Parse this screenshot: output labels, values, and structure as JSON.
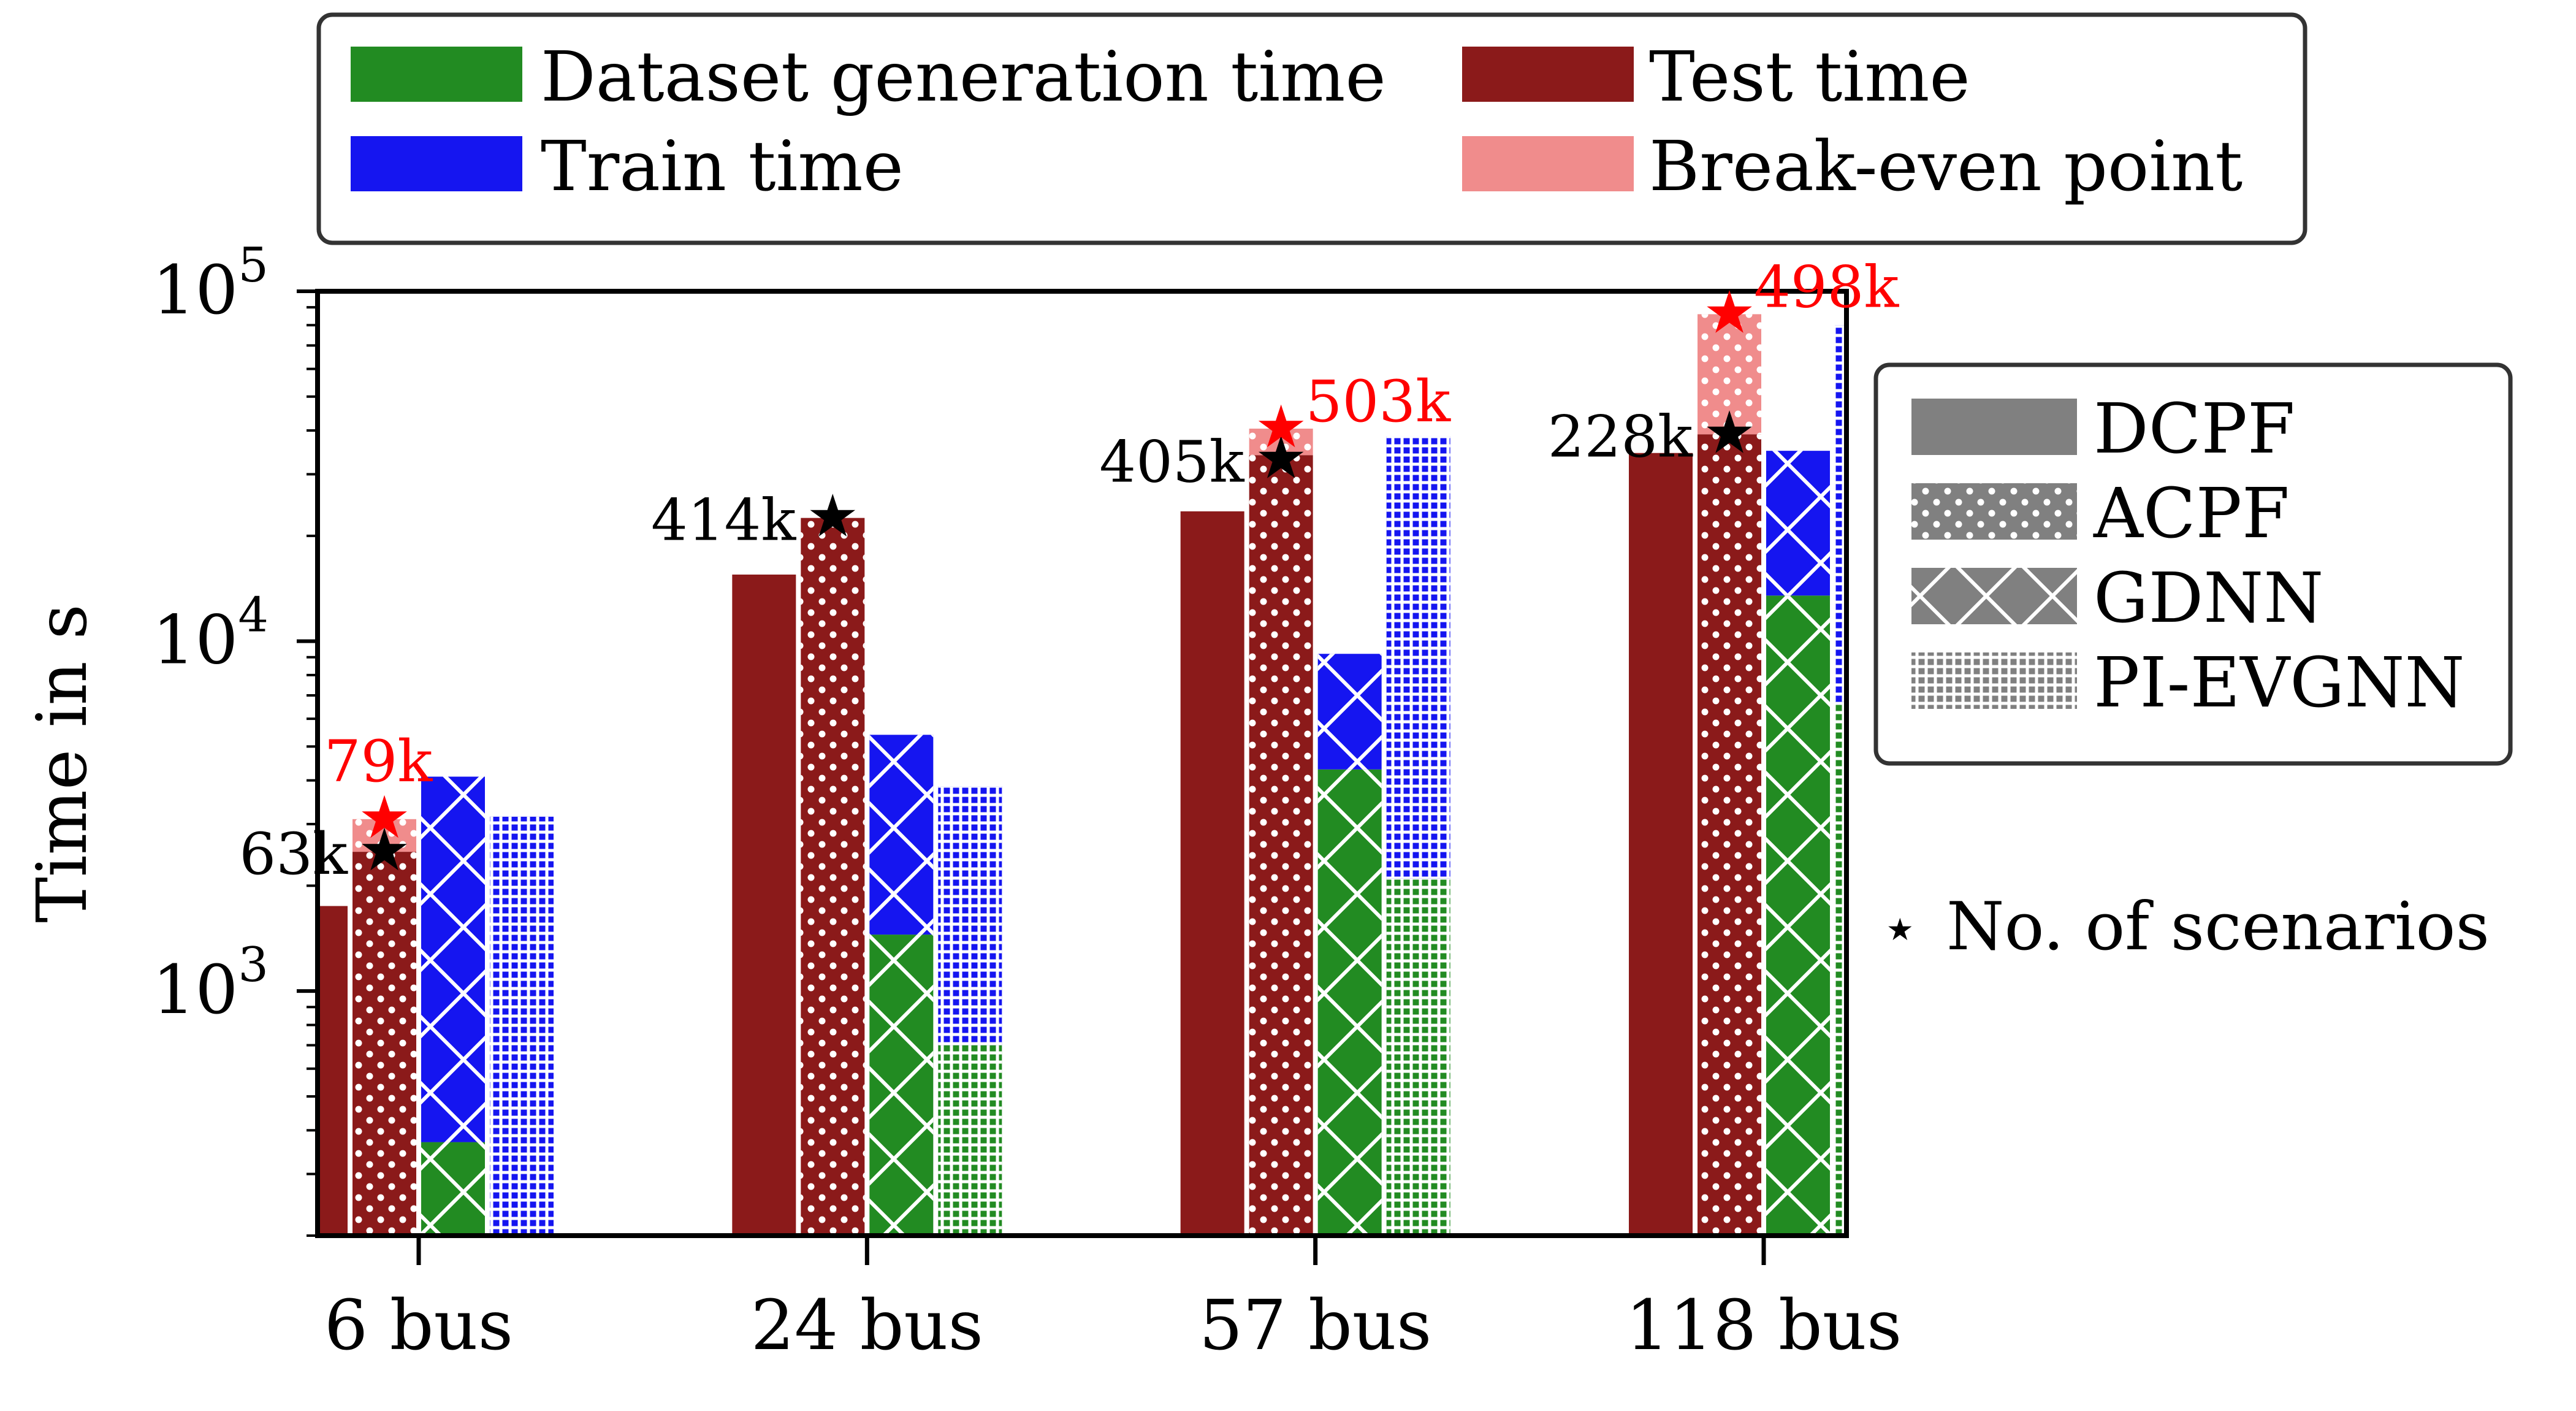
{
  "colors": {
    "dataset": "#228b22",
    "train": "#1515f0",
    "test": "#8b1a1a",
    "breakeven": "#f08c8c",
    "star_black": "#000000",
    "star_red": "#ff0000",
    "pattern_line": "#ffffff",
    "legend_swatch": "#808080",
    "axis": "#000000"
  },
  "legend_top": {
    "items": [
      {
        "label": "Dataset generation time",
        "color_key": "dataset"
      },
      {
        "label": "Test time",
        "color_key": "test"
      },
      {
        "label": "Train time",
        "color_key": "train"
      },
      {
        "label": "Break-even point",
        "color_key": "breakeven"
      }
    ]
  },
  "legend_right": {
    "items": [
      {
        "label": "DCPF",
        "pattern": "solid"
      },
      {
        "label": "ACPF",
        "pattern": "dots"
      },
      {
        "label": "GDNN",
        "pattern": "cross"
      },
      {
        "label": "PI-EVGNN",
        "pattern": "grid"
      }
    ]
  },
  "scenario_note": {
    "icon": "⋆",
    "label": "No. of scenarios"
  },
  "chart_data": {
    "type": "bar",
    "scale": "log",
    "ylabel": "Time in s",
    "xlabel": "",
    "ylim": [
      200,
      100000
    ],
    "yticks": [
      {
        "value": 1000,
        "base": "10",
        "exp": "3"
      },
      {
        "value": 10000,
        "base": "10",
        "exp": "4"
      },
      {
        "value": 100000,
        "base": "10",
        "exp": "5"
      }
    ],
    "categories": [
      "6 bus",
      "24 bus",
      "57 bus",
      "118 bus"
    ],
    "methods": [
      "DCPF",
      "ACPF",
      "GDNN",
      "PI-EVGNN"
    ],
    "groups": [
      {
        "category": "6 bus",
        "DCPF": {
          "test": 1750
        },
        "ACPF": {
          "test": 2500,
          "breakeven": 3100
        },
        "GDNN": {
          "dataset": 370,
          "train": 4100
        },
        "PI-EVGNN": {
          "dataset": 200,
          "train": 3150
        },
        "annotations": [
          {
            "method": "ACPF",
            "value": 2500,
            "label": "63k",
            "color_key": "star_black",
            "label_side": "left"
          },
          {
            "method": "ACPF",
            "value": 3100,
            "label": "79k",
            "color_key": "star_red",
            "label_side": "above"
          }
        ]
      },
      {
        "category": "24 bus",
        "DCPF": {
          "test": 15500
        },
        "ACPF": {
          "test": 22500
        },
        "GDNN": {
          "dataset": 1450,
          "train": 5400
        },
        "PI-EVGNN": {
          "dataset": 700,
          "train": 3850
        },
        "annotations": [
          {
            "method": "ACPF",
            "value": 22500,
            "label": "414k",
            "color_key": "star_black",
            "label_side": "left"
          }
        ]
      },
      {
        "category": "57 bus",
        "DCPF": {
          "test": 23500
        },
        "ACPF": {
          "test": 34000,
          "breakeven": 40500
        },
        "GDNN": {
          "dataset": 4300,
          "train": 9200
        },
        "PI-EVGNN": {
          "dataset": 2100,
          "train": 38500
        },
        "annotations": [
          {
            "method": "ACPF",
            "value": 33000,
            "label": "405k",
            "color_key": "star_black",
            "label_side": "left"
          },
          {
            "method": "ACPF",
            "value": 40500,
            "label": "503k",
            "color_key": "star_red",
            "label_side": "right"
          }
        ]
      },
      {
        "category": "118 bus",
        "DCPF": {
          "test": 34500
        },
        "ACPF": {
          "test": 39000,
          "breakeven": 86000
        },
        "GDNN": {
          "dataset": 13500,
          "train": 35000
        },
        "PI-EVGNN": {
          "dataset": 6700,
          "train": 80000
        },
        "annotations": [
          {
            "method": "ACPF",
            "value": 39000,
            "label": "228k",
            "color_key": "star_black",
            "label_side": "left"
          },
          {
            "method": "ACPF",
            "value": 86000,
            "label": "498k",
            "color_key": "star_red",
            "label_side": "right"
          }
        ]
      }
    ]
  }
}
